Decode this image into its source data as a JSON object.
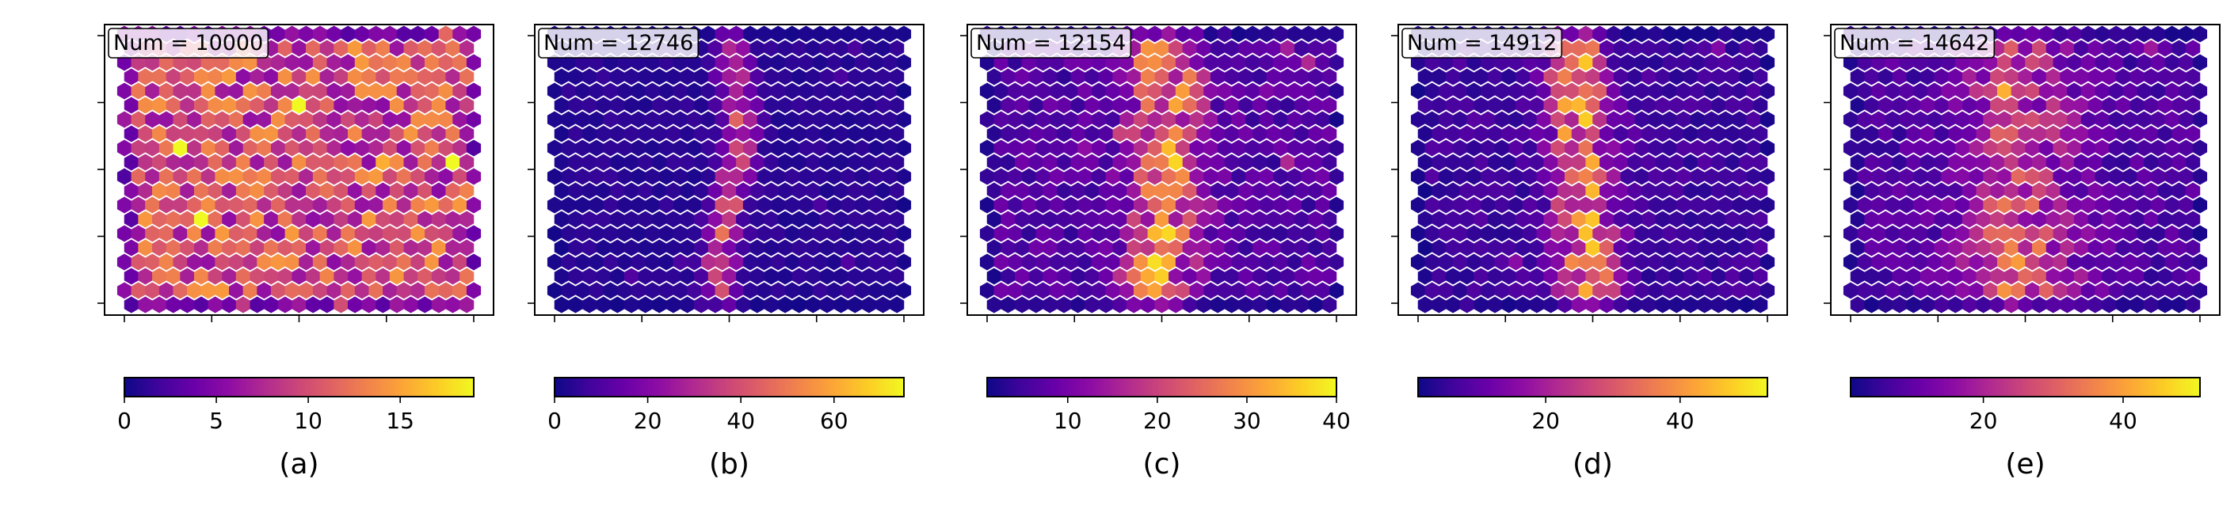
{
  "chart_data": [
    {
      "type": "heatmap",
      "subplot_label": "(a)",
      "annotation": "Num = 10000",
      "colormap": "plasma",
      "colorbar": {
        "min": 0,
        "max": 19,
        "ticks": [
          0,
          5,
          10,
          15
        ],
        "tick_labels": [
          "0",
          "5",
          "10",
          "15"
        ]
      },
      "pattern": "uniform",
      "mean_count": 10,
      "grid_rows": 20,
      "grid_cols": 26
    },
    {
      "type": "heatmap",
      "subplot_label": "(b)",
      "annotation": "Num = 12746",
      "colormap": "plasma",
      "colorbar": {
        "min": 0,
        "max": 75,
        "ticks": [
          0,
          20,
          40,
          60
        ],
        "tick_labels": [
          "0",
          "20",
          "40",
          "60"
        ]
      },
      "pattern": "narrow-vertical-band",
      "mean_count": 12,
      "grid_rows": 20,
      "grid_cols": 26
    },
    {
      "type": "heatmap",
      "subplot_label": "(c)",
      "annotation": "Num = 12154",
      "colormap": "plasma",
      "colorbar": {
        "min": 1,
        "max": 40,
        "ticks": [
          10,
          20,
          30,
          40
        ],
        "tick_labels": [
          "10",
          "20",
          "30",
          "40"
        ]
      },
      "pattern": "wide-vertical-band",
      "mean_count": 12,
      "grid_rows": 20,
      "grid_cols": 26
    },
    {
      "type": "heatmap",
      "subplot_label": "(d)",
      "annotation": "Num = 14912",
      "colormap": "plasma",
      "colorbar": {
        "min": 1,
        "max": 53,
        "ticks": [
          20,
          40
        ],
        "tick_labels": [
          "20",
          "40"
        ]
      },
      "pattern": "vertical-band",
      "mean_count": 14,
      "grid_rows": 20,
      "grid_cols": 26
    },
    {
      "type": "heatmap",
      "subplot_label": "(e)",
      "annotation": "Num = 14642",
      "colormap": "plasma",
      "colorbar": {
        "min": 1,
        "max": 51,
        "ticks": [
          20,
          40
        ],
        "tick_labels": [
          "20",
          "40"
        ]
      },
      "pattern": "diffuse-central-band",
      "mean_count": 14,
      "grid_rows": 20,
      "grid_cols": 26
    }
  ]
}
